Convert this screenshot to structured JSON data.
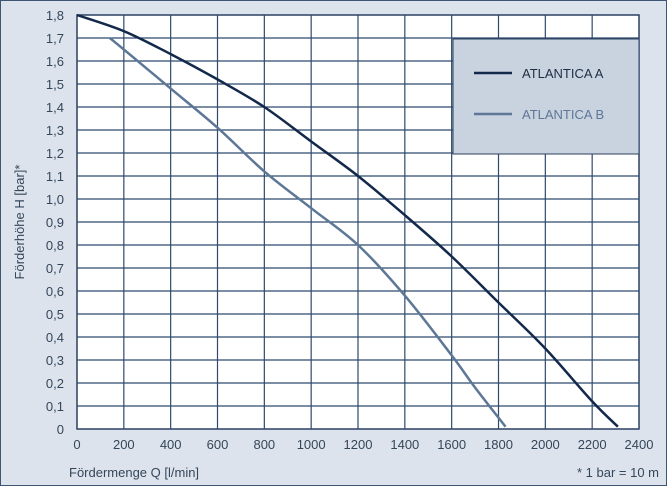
{
  "chart_data": {
    "type": "line",
    "xlabel": "Fördermenge Q [l/min]",
    "ylabel": "Förderhöhe H [bar]*",
    "footnote": "* 1 bar = 10 m",
    "xlim": [
      0,
      2400
    ],
    "ylim": [
      0,
      1.8
    ],
    "x_ticks": [
      "0",
      "200",
      "400",
      "600",
      "800",
      "1000",
      "1200",
      "1400",
      "1600",
      "1800",
      "2000",
      "2200",
      "2400"
    ],
    "y_ticks": [
      "0",
      "0,1",
      "0,2",
      "0,3",
      "0,4",
      "0,5",
      "0,6",
      "0,7",
      "0,8",
      "0,9",
      "1,0",
      "1,1",
      "1,2",
      "1,3",
      "1,4",
      "1,5",
      "1,6",
      "1,7",
      "1,8"
    ],
    "grid": true,
    "legend_position": "top-right",
    "series": [
      {
        "name": "ATLANTICA A",
        "color": "#13294b",
        "x": [
          0,
          200,
          400,
          600,
          800,
          1000,
          1200,
          1400,
          1600,
          1800,
          2000,
          2200,
          2310
        ],
        "y": [
          1.8,
          1.73,
          1.63,
          1.52,
          1.4,
          1.25,
          1.1,
          0.93,
          0.75,
          0.55,
          0.35,
          0.12,
          0.01
        ]
      },
      {
        "name": "ATLANTICA B",
        "color": "#5d7797",
        "x": [
          140,
          200,
          400,
          600,
          800,
          1000,
          1200,
          1400,
          1600,
          1700,
          1830
        ],
        "y": [
          1.7,
          1.65,
          1.48,
          1.31,
          1.12,
          0.96,
          0.8,
          0.58,
          0.32,
          0.18,
          0.01
        ]
      }
    ]
  }
}
